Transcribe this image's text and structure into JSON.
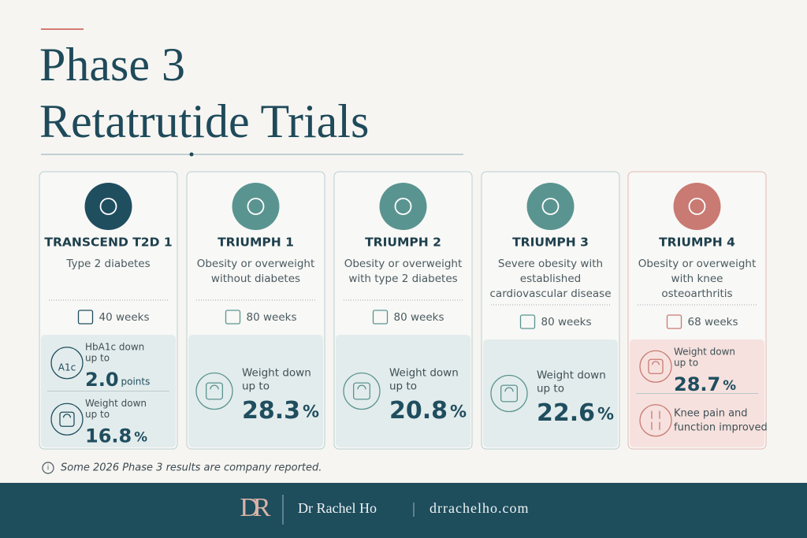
{
  "header": {
    "title_lines": [
      "Phase 3",
      "Retatrutide Trials"
    ]
  },
  "cards": [
    {
      "name": "TRANSCEND T2D 1",
      "population": [
        "Type 2 diabetes"
      ],
      "duration": "40 weeks",
      "results": [
        {
          "icon_text": "A1c",
          "label": [
            "HbA1c down",
            "up to"
          ],
          "value": "2.0",
          "unit": "points"
        },
        {
          "label": [
            "Weight down",
            "up to"
          ],
          "value": "16.8",
          "unit": "%"
        }
      ]
    },
    {
      "name": "TRIUMPH 1",
      "population": [
        "Obesity or overweight",
        "without diabetes"
      ],
      "duration": "80 weeks",
      "results": [
        {
          "label": [
            "Weight down",
            "up to"
          ],
          "value": "28.3",
          "unit": "%"
        }
      ]
    },
    {
      "name": "TRIUMPH 2",
      "population": [
        "Obesity or overweight",
        "with type 2 diabetes"
      ],
      "duration": "80 weeks",
      "results": [
        {
          "label": [
            "Weight down",
            "up to"
          ],
          "value": "20.8",
          "unit": "%"
        }
      ]
    },
    {
      "name": "TRIUMPH 3",
      "population": [
        "Severe obesity with",
        "established",
        "cardiovascular disease"
      ],
      "duration": "80 weeks",
      "results": [
        {
          "label": [
            "Weight down",
            "up to"
          ],
          "value": "22.6",
          "unit": "%"
        }
      ]
    },
    {
      "name": "TRIUMPH 4",
      "population": [
        "Obesity or overweight",
        "with knee",
        "osteoarthritis"
      ],
      "duration": "68 weeks",
      "results": [
        {
          "label": [
            "Weight down",
            "up to"
          ],
          "value": "28.7",
          "unit": "%"
        },
        {
          "label": [
            "Knee pain and",
            "function improved"
          ]
        }
      ]
    }
  ],
  "footnote": "Some 2026 Phase 3 results are company reported.",
  "footer": {
    "logo": "DR",
    "name": "Dr Rachel Ho",
    "site": "drrachelho.com"
  }
}
